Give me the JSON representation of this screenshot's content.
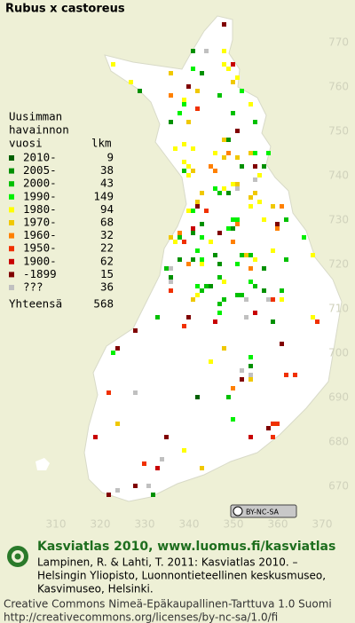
{
  "title": "Rubus x castoreus",
  "legend": {
    "heading": [
      "Uusimman",
      "havainnon",
      "vuosi"
    ],
    "count_heading": "lkm",
    "rows": [
      {
        "label": "2010-",
        "count": 9,
        "color": "#006000"
      },
      {
        "label": "2005-",
        "count": 38,
        "color": "#009000"
      },
      {
        "label": "2000-",
        "count": 43,
        "color": "#00c000"
      },
      {
        "label": "1990-",
        "count": 149,
        "color": "#00f000"
      },
      {
        "label": "1980-",
        "count": 94,
        "color": "#ffff00"
      },
      {
        "label": "1970-",
        "count": 68,
        "color": "#f0c800"
      },
      {
        "label": "1960-",
        "count": 32,
        "color": "#ff8000"
      },
      {
        "label": "1950-",
        "count": 22,
        "color": "#f03000"
      },
      {
        "label": "1900-",
        "count": 62,
        "color": "#c80000"
      },
      {
        "label": "-1899",
        "count": 15,
        "color": "#800000"
      },
      {
        "label": "???",
        "count": 36,
        "color": "#c0c0c0"
      }
    ],
    "total_label": "Yhteensä",
    "total": 568
  },
  "grid_y_labels": [
    770,
    760,
    750,
    740,
    730,
    720,
    710,
    700,
    690,
    680,
    670
  ],
  "grid_x_labels": [
    310,
    320,
    330,
    340,
    350,
    360,
    370
  ],
  "license_badge": "BY-NC-SA",
  "footer": {
    "headline": "Kasviatlas 2010, www.luomus.fi/kasviatlas",
    "citation": [
      "Lampinen, R. & Lahti, T. 2011: Kasviatlas 2010. –",
      "Helsingin Yliopisto, Luonnontieteellinen keskusmuseo,",
      "Kasvimuseo, Helsinki."
    ],
    "license": [
      "Creative Commons Nimeä-Epäkaupallinen-Tarttuva 1.0 Suomi",
      "http://creativecommons.org/licenses/by-nc-sa/1.0/fi"
    ]
  }
}
